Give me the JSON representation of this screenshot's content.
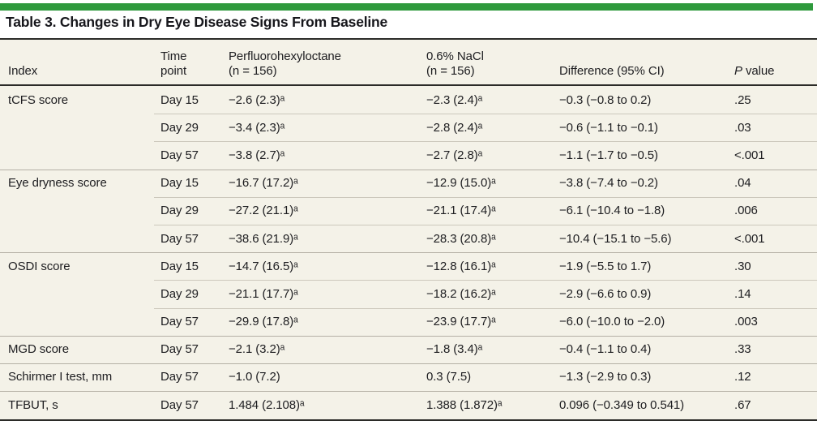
{
  "colors": {
    "accent_green": "#2f9a3d",
    "table_background": "#f4f2e8",
    "dark_rule": "#2b2b28",
    "group_rule": "#b4b0a5",
    "row_rule": "#ccc8bc",
    "text": "#1d1d20"
  },
  "title": "Table 3. Changes in Dry Eye Disease Signs From Baseline",
  "table": {
    "headers": {
      "index": "Index",
      "time_point_line1": "Time",
      "time_point_line2": "point",
      "drug_line1": "Perfluorohexyloctane",
      "drug_line2": "(n = 156)",
      "control_line1": "0.6% NaCl",
      "control_line2": "(n = 156)",
      "difference": "Difference (95% CI)",
      "p_italic": "P",
      "p_rest": " value"
    },
    "rows": [
      {
        "index": "tCFS score",
        "time": "Day 15",
        "drug": "−2.6 (2.3)ᵃ",
        "control": "−2.3 (2.4)ᵃ",
        "diff": "−0.3 (−0.8 to 0.2)",
        "p": ".25"
      },
      {
        "index": "",
        "time": "Day 29",
        "drug": "−3.4 (2.3)ᵃ",
        "control": "−2.8 (2.4)ᵃ",
        "diff": "−0.6 (−1.1 to −0.1)",
        "p": ".03"
      },
      {
        "index": "",
        "time": "Day 57",
        "drug": "−3.8 (2.7)ᵃ",
        "control": "−2.7 (2.8)ᵃ",
        "diff": "−1.1 (−1.7 to −0.5)",
        "p": "<.001"
      },
      {
        "index": "Eye dryness score",
        "time": "Day 15",
        "drug": "−16.7 (17.2)ᵃ",
        "control": "−12.9 (15.0)ᵃ",
        "diff": "−3.8 (−7.4 to −0.2)",
        "p": ".04"
      },
      {
        "index": "",
        "time": "Day 29",
        "drug": "−27.2 (21.1)ᵃ",
        "control": "−21.1 (17.4)ᵃ",
        "diff": "−6.1 (−10.4 to −1.8)",
        "p": ".006"
      },
      {
        "index": "",
        "time": "Day 57",
        "drug": "−38.6 (21.9)ᵃ",
        "control": "−28.3 (20.8)ᵃ",
        "diff": "−10.4 (−15.1 to −5.6)",
        "p": "<.001"
      },
      {
        "index": "OSDI score",
        "time": "Day 15",
        "drug": "−14.7 (16.5)ᵃ",
        "control": "−12.8 (16.1)ᵃ",
        "diff": "−1.9 (−5.5 to 1.7)",
        "p": ".30"
      },
      {
        "index": "",
        "time": "Day 29",
        "drug": "−21.1 (17.7)ᵃ",
        "control": "−18.2 (16.2)ᵃ",
        "diff": "−2.9 (−6.6 to 0.9)",
        "p": ".14"
      },
      {
        "index": "",
        "time": "Day 57",
        "drug": "−29.9 (17.8)ᵃ",
        "control": "−23.9 (17.7)ᵃ",
        "diff": "−6.0 (−10.0 to −2.0)",
        "p": ".003"
      },
      {
        "index": "MGD score",
        "time": "Day 57",
        "drug": "−2.1 (3.2)ᵃ",
        "control": "−1.8 (3.4)ᵃ",
        "diff": "−0.4 (−1.1 to 0.4)",
        "p": ".33"
      },
      {
        "index": "Schirmer I test, mm",
        "time": "Day 57",
        "drug": "−1.0 (7.2)",
        "control": "0.3 (7.5)",
        "diff": "−1.3 (−2.9 to 0.3)",
        "p": ".12"
      },
      {
        "index": "TFBUT, s",
        "time": "Day 57",
        "drug": "1.484 (2.108)ᵃ",
        "control": "1.388 (1.872)ᵃ",
        "diff": "0.096 (−0.349 to 0.541)",
        "p": ".67"
      }
    ]
  }
}
